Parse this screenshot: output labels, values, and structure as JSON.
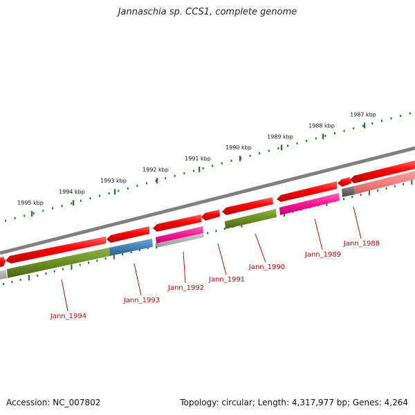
{
  "title": "Jannaschia sp. CCS1, complete genome",
  "footer": {
    "accession": "Accession: NC_007802",
    "summary": "Topology: circular; Length: 4,317,977 bp; Genes: 4,264"
  },
  "ruler": {
    "unit": "kbp",
    "labels": [
      "1987 kbp",
      "1988 kbp",
      "1989 kbp",
      "1990 kbp",
      "1991 kbp",
      "1992 kbp",
      "1993 kbp",
      "1994 kbp",
      "1995 kbp"
    ]
  },
  "gene_labels": [
    "Jann_1988",
    "Jann_1989",
    "Jann_1990",
    "Jann_1991",
    "Jann_1992",
    "Jann_1993",
    "Jann_1994"
  ],
  "colors": {
    "cds_arrow": "#ff0000",
    "backbone": "#808080",
    "label_red": "#cc0000",
    "tick_green": "#1a7a1a",
    "green_feature": "#6b8e23",
    "blue_feature": "#4682b4",
    "magenta_feature": "#ff1493",
    "pink_feature": "#f08080",
    "grey_feature": "#696969"
  }
}
